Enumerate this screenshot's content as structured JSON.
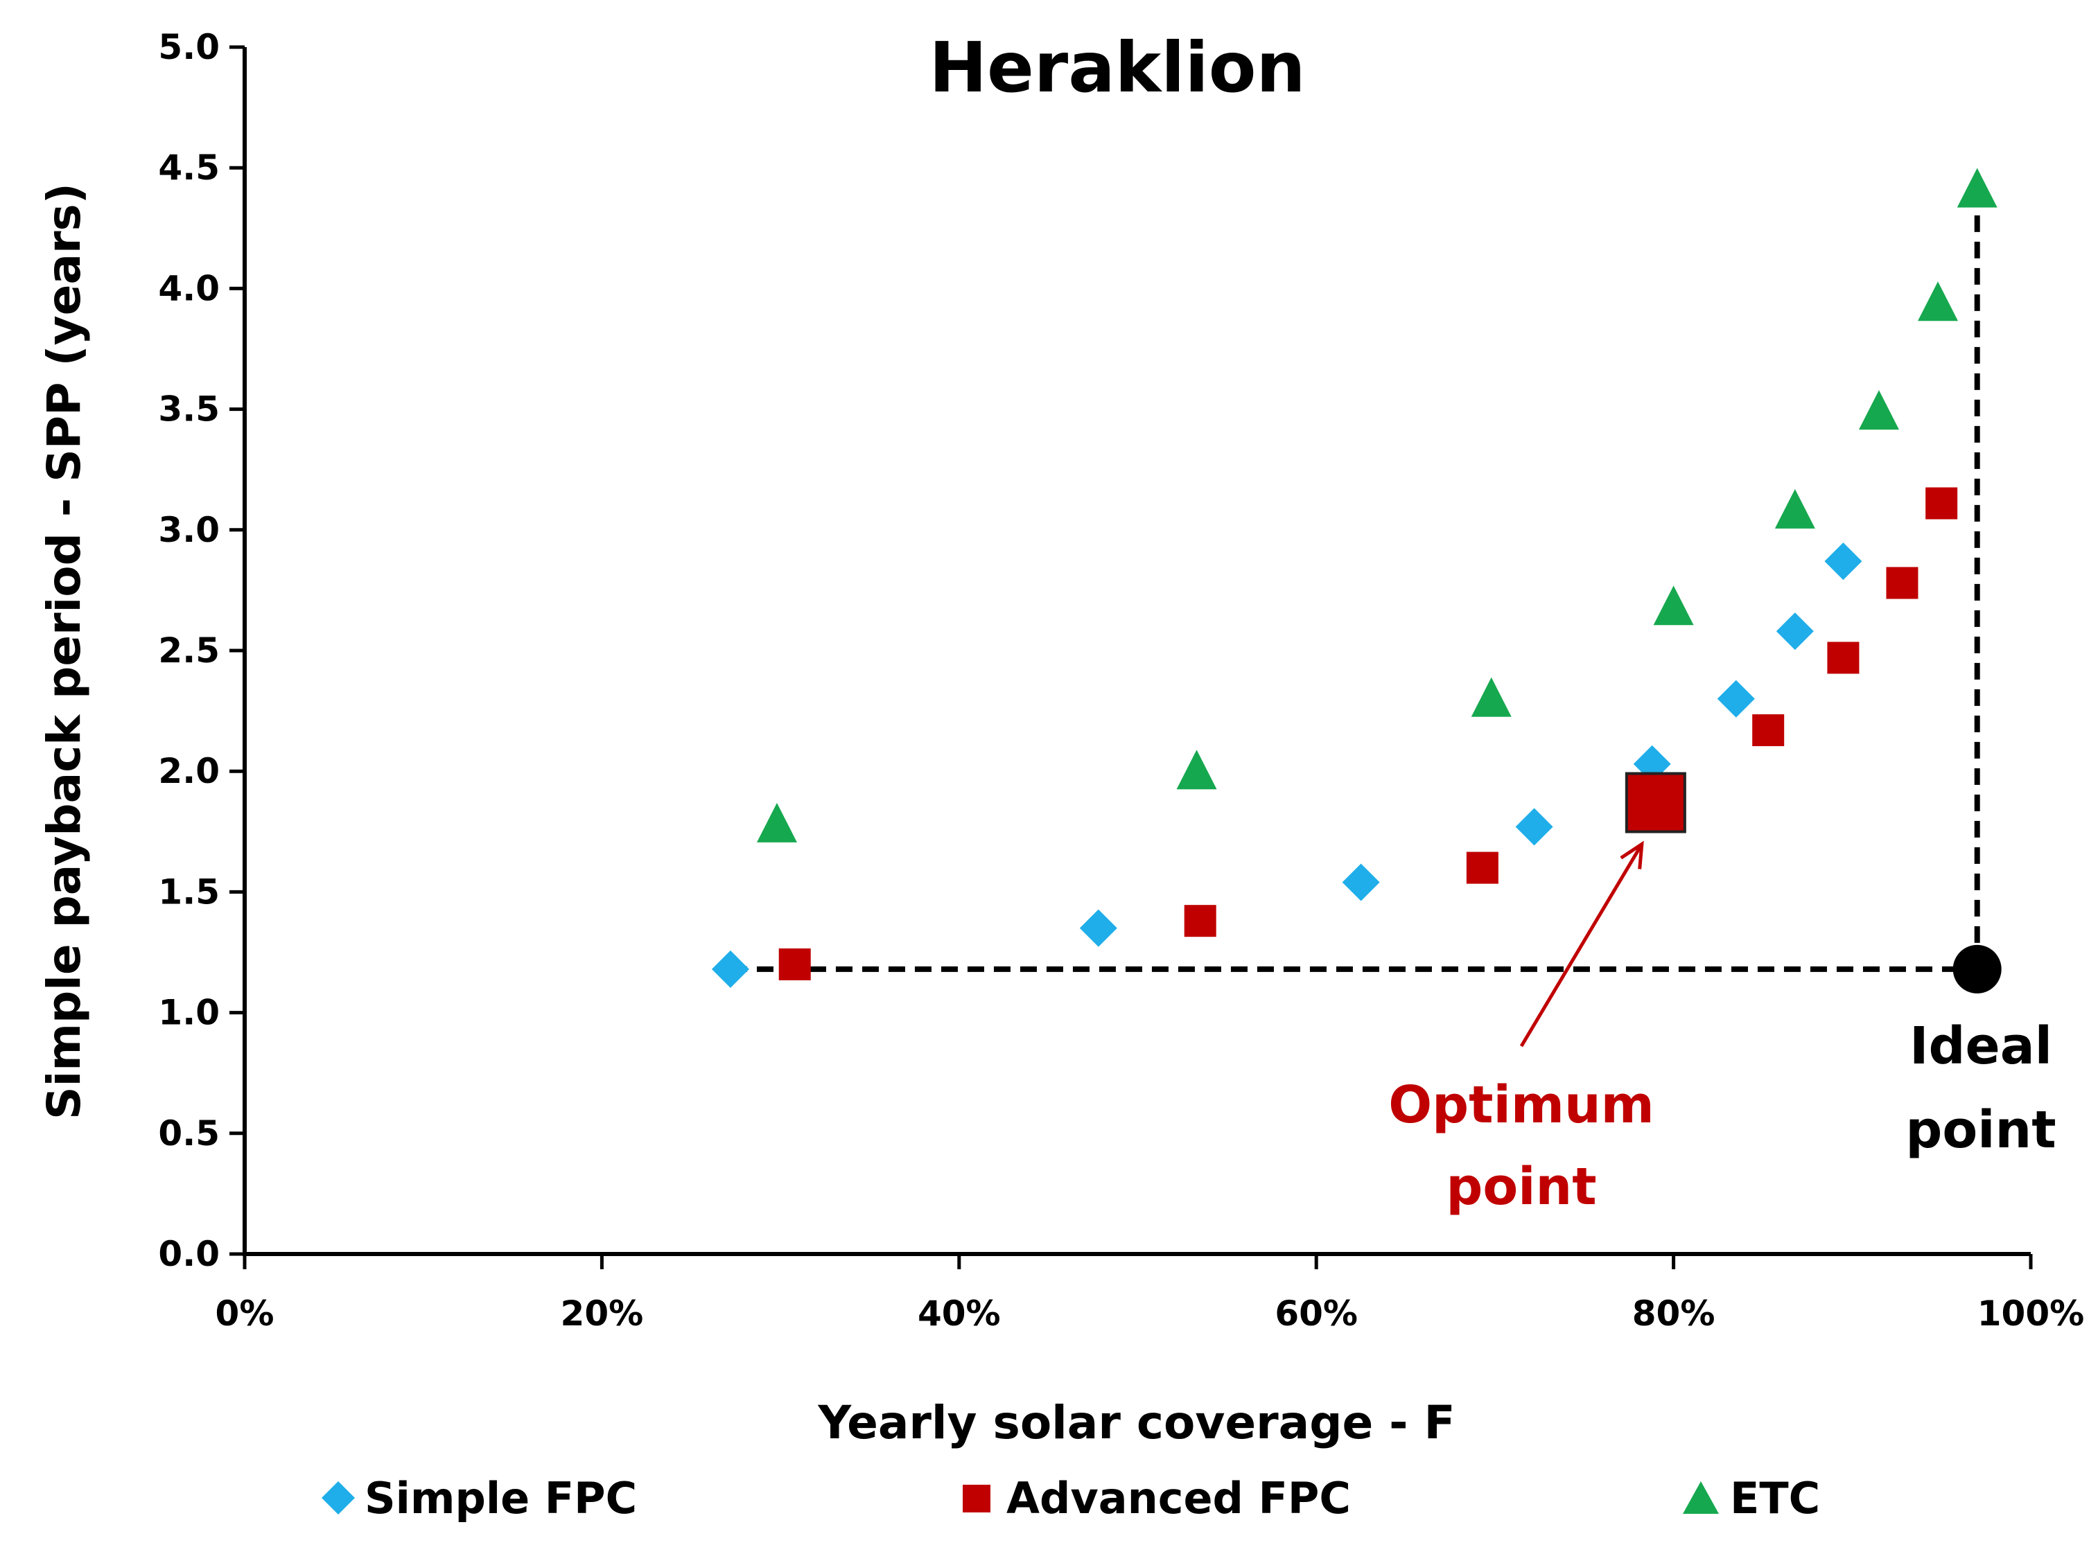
{
  "chart_data": {
    "type": "scatter",
    "title": "Heraklion",
    "xlabel": "Yearly solar coverage - F",
    "ylabel": "Simple payback period - SPP (years)",
    "xlim": [
      0,
      1
    ],
    "ylim": [
      0,
      5
    ],
    "x_tick_values": [
      0,
      0.2,
      0.4,
      0.6,
      0.8,
      1.0
    ],
    "x_tick_labels": [
      "0%",
      "20%",
      "40%",
      "60%",
      "80%",
      "100%"
    ],
    "y_tick_values": [
      0,
      0.5,
      1,
      1.5,
      2,
      2.5,
      3,
      3.5,
      4,
      4.5,
      5
    ],
    "y_tick_labels": [
      "0.0",
      "0.5",
      "1.0",
      "1.5",
      "2.0",
      "2.5",
      "3.0",
      "3.5",
      "4.0",
      "4.5",
      "5.0"
    ],
    "grid": false,
    "legend_position": "bottom",
    "series": [
      {
        "name": "Simple FPC",
        "marker": "diamond",
        "color": "#1faee9",
        "points": [
          {
            "x": 0.272,
            "y": 1.18
          },
          {
            "x": 0.478,
            "y": 1.35
          },
          {
            "x": 0.625,
            "y": 1.54
          },
          {
            "x": 0.722,
            "y": 1.77
          },
          {
            "x": 0.788,
            "y": 2.03
          },
          {
            "x": 0.835,
            "y": 2.3
          },
          {
            "x": 0.868,
            "y": 2.58
          },
          {
            "x": 0.895,
            "y": 2.87
          }
        ]
      },
      {
        "name": "Advanced FPC",
        "marker": "square",
        "color": "#c00000",
        "points": [
          {
            "x": 0.308,
            "y": 1.2
          },
          {
            "x": 0.535,
            "y": 1.38
          },
          {
            "x": 0.693,
            "y": 1.6
          },
          {
            "x": 0.79,
            "y": 1.87,
            "highlight": true
          },
          {
            "x": 0.853,
            "y": 2.17
          },
          {
            "x": 0.895,
            "y": 2.47
          },
          {
            "x": 0.928,
            "y": 2.78
          },
          {
            "x": 0.95,
            "y": 3.11
          }
        ]
      },
      {
        "name": "ETC",
        "marker": "triangle",
        "color": "#16a84f",
        "points": [
          {
            "x": 0.298,
            "y": 1.78
          },
          {
            "x": 0.533,
            "y": 2.0
          },
          {
            "x": 0.698,
            "y": 2.3
          },
          {
            "x": 0.8,
            "y": 2.68
          },
          {
            "x": 0.868,
            "y": 3.08
          },
          {
            "x": 0.915,
            "y": 3.49
          },
          {
            "x": 0.948,
            "y": 3.94
          },
          {
            "x": 0.97,
            "y": 4.41
          }
        ]
      }
    ],
    "ideal_point": {
      "x": 0.97,
      "y": 1.18,
      "label_line1": "Ideal",
      "label_line2": "point",
      "color": "#000000"
    },
    "optimum_point": {
      "x": 0.79,
      "y": 1.87,
      "label_line1": "Optimum",
      "label_line2": "point",
      "color": "#c00000"
    }
  }
}
